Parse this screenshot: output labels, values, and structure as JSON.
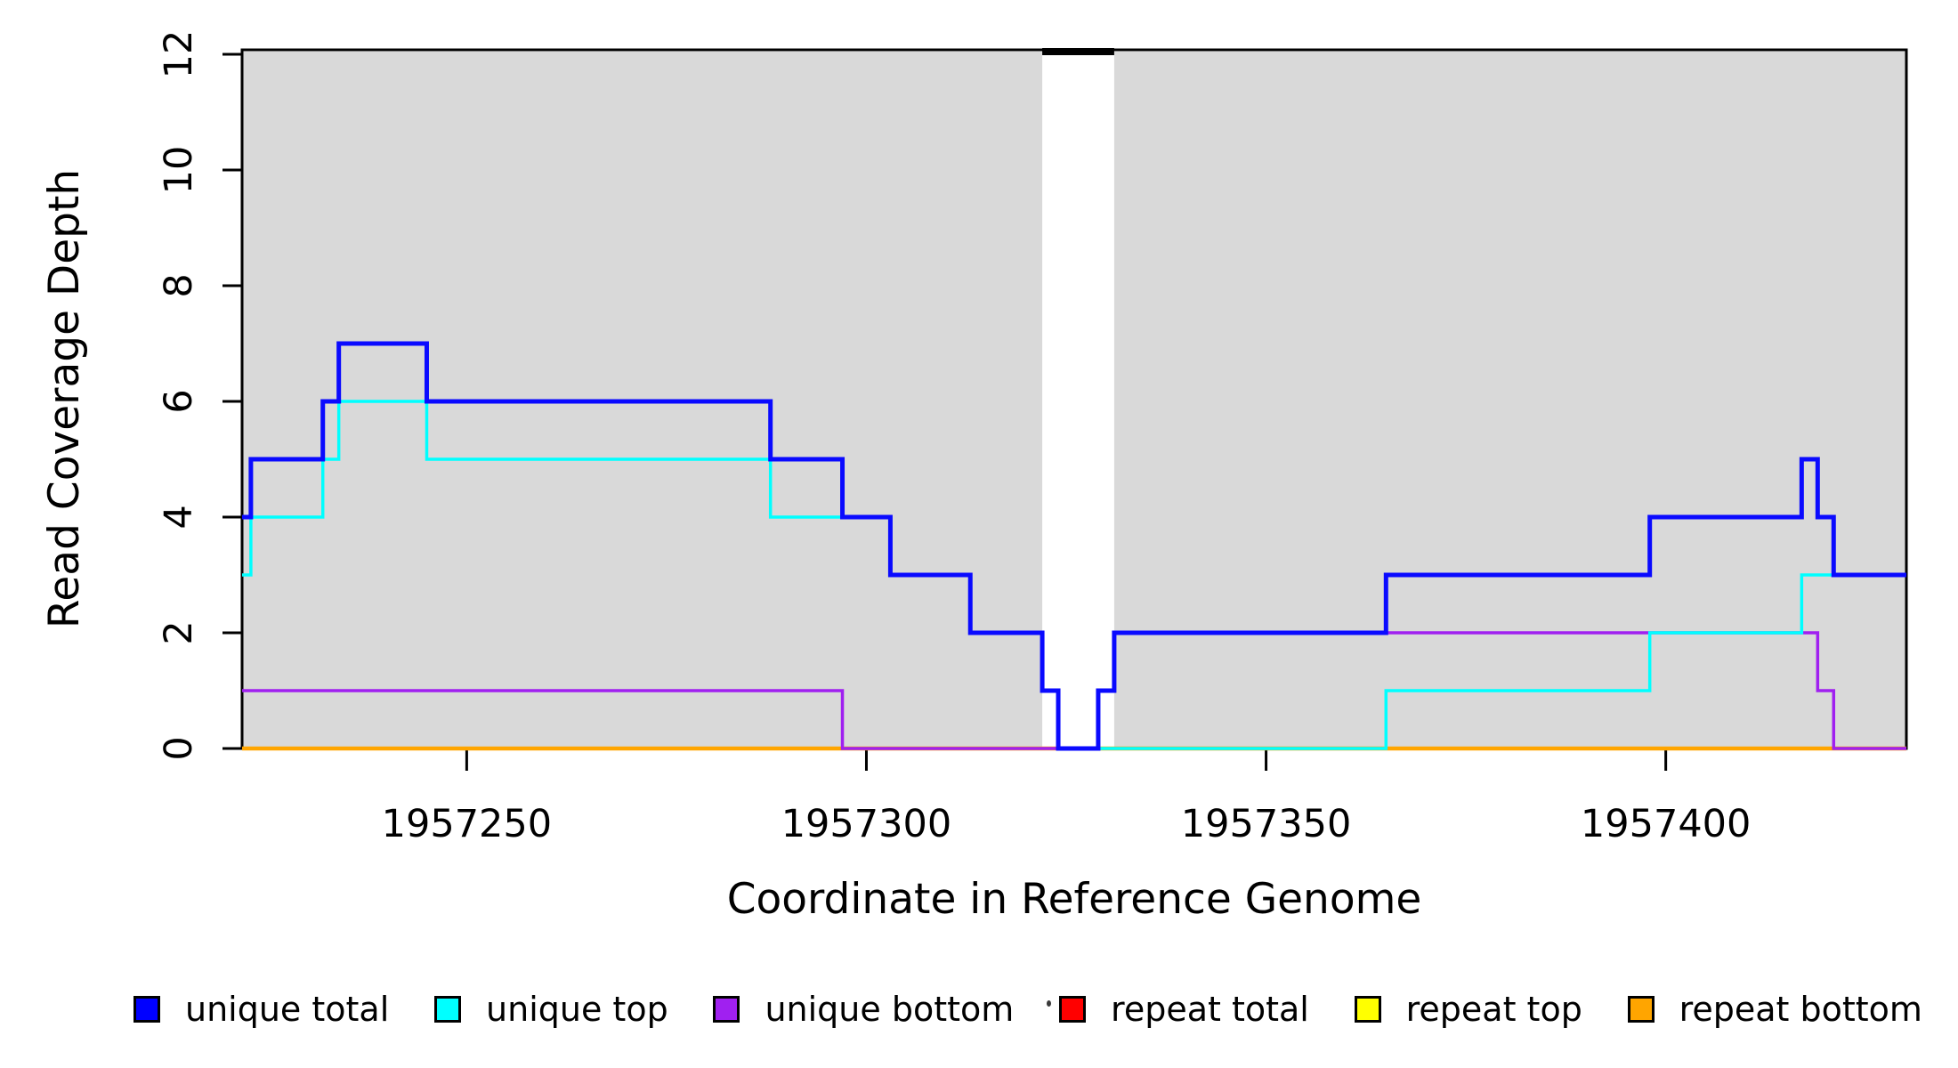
{
  "figure": {
    "background": "#ffffff",
    "plot_shading_color": "#d9d9d9",
    "border_color": "#000000"
  },
  "legend": {
    "position": "bottom",
    "items": [
      {
        "label": "unique total",
        "color": "#0000ff"
      },
      {
        "label": "unique top",
        "color": "#00ffff"
      },
      {
        "label": "unique bottom",
        "color": "#a020f0"
      },
      {
        "label": "repeat total",
        "color": "#ff0000"
      },
      {
        "label": "repeat top",
        "color": "#ffff00"
      },
      {
        "label": "repeat bottom",
        "color": "#ffa500"
      }
    ]
  },
  "chart_data": {
    "type": "line",
    "subtype": "step-coverage",
    "title": "",
    "xlabel": "Coordinate in Reference Genome",
    "ylabel": "Read Coverage Depth",
    "xlim": [
      1957221.9,
      1957430.1
    ],
    "ylim": [
      0,
      12
    ],
    "x_ticks": [
      1957250,
      1957300,
      1957350,
      1957400
    ],
    "y_ticks": [
      0,
      2,
      4,
      6,
      8,
      10,
      12
    ],
    "grid": false,
    "legend_position": "bottom",
    "background_shading": {
      "color": "#d9d9d9",
      "regions": [
        [
          1957221.9,
          1957322
        ],
        [
          1957331,
          1957430.1
        ]
      ],
      "white_gap": [
        1957322,
        1957331
      ]
    },
    "draw_order": [
      "repeat total",
      "repeat top",
      "repeat bottom",
      "unique bottom",
      "unique top",
      "unique total"
    ],
    "series": [
      {
        "name": "unique total",
        "color": "#0a0aff",
        "line_width": 5,
        "steps": [
          [
            1957221.9,
            4
          ],
          [
            1957223,
            5
          ],
          [
            1957232,
            6
          ],
          [
            1957234,
            7
          ],
          [
            1957245,
            6
          ],
          [
            1957288,
            5
          ],
          [
            1957297,
            4
          ],
          [
            1957303,
            3
          ],
          [
            1957313,
            2
          ],
          [
            1957322,
            1
          ],
          [
            1957324,
            0
          ],
          [
            1957329,
            1
          ],
          [
            1957331,
            2
          ],
          [
            1957365,
            3
          ],
          [
            1957398,
            4
          ],
          [
            1957417,
            5
          ],
          [
            1957419,
            4
          ],
          [
            1957421,
            3
          ]
        ]
      },
      {
        "name": "unique top",
        "color": "#00ffff",
        "line_width": 3.5,
        "steps": [
          [
            1957221.9,
            3
          ],
          [
            1957223,
            4
          ],
          [
            1957232,
            5
          ],
          [
            1957234,
            6
          ],
          [
            1957245,
            5
          ],
          [
            1957288,
            4
          ],
          [
            1957303,
            3
          ],
          [
            1957313,
            2
          ],
          [
            1957322,
            1
          ],
          [
            1957324,
            0
          ],
          [
            1957365,
            1
          ],
          [
            1957398,
            2
          ],
          [
            1957417,
            3
          ]
        ]
      },
      {
        "name": "unique bottom",
        "color": "#a020f0",
        "line_width": 3.5,
        "steps": [
          [
            1957221.9,
            1
          ],
          [
            1957297,
            0
          ],
          [
            1957329,
            1
          ],
          [
            1957331,
            2
          ],
          [
            1957419,
            1
          ],
          [
            1957421,
            0
          ]
        ]
      },
      {
        "name": "repeat total",
        "color": "#ff0000",
        "line_width": 3.5,
        "steps": [
          [
            1957221.9,
            0
          ]
        ]
      },
      {
        "name": "repeat top",
        "color": "#ffff00",
        "line_width": 3.5,
        "steps": [
          [
            1957221.9,
            0
          ]
        ]
      },
      {
        "name": "repeat bottom",
        "color": "#ffa500",
        "line_width": 4.5,
        "steps": [
          [
            1957221.9,
            0
          ]
        ]
      }
    ]
  }
}
